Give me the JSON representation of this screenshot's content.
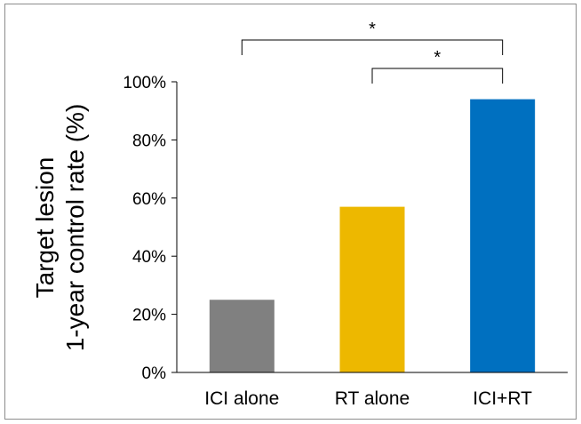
{
  "chart_data": {
    "type": "bar",
    "categories": [
      "ICI alone",
      "RT alone",
      "ICI+RT"
    ],
    "values": [
      25,
      57,
      94
    ],
    "colors": [
      "#808080",
      "#EDB800",
      "#0070C0"
    ],
    "ylabel_lines": [
      "Target lesion",
      "1-year control rate (%)"
    ],
    "ylim": [
      0,
      100
    ],
    "yticks": [
      0,
      20,
      40,
      60,
      80,
      100
    ],
    "ytick_labels": [
      "0%",
      "20%",
      "40%",
      "60%",
      "80%",
      "100%"
    ],
    "grid": false,
    "significance": [
      {
        "from": "ICI alone",
        "to": "ICI+RT",
        "label": "*"
      },
      {
        "from": "RT alone",
        "to": "ICI+RT",
        "label": "*"
      }
    ]
  }
}
